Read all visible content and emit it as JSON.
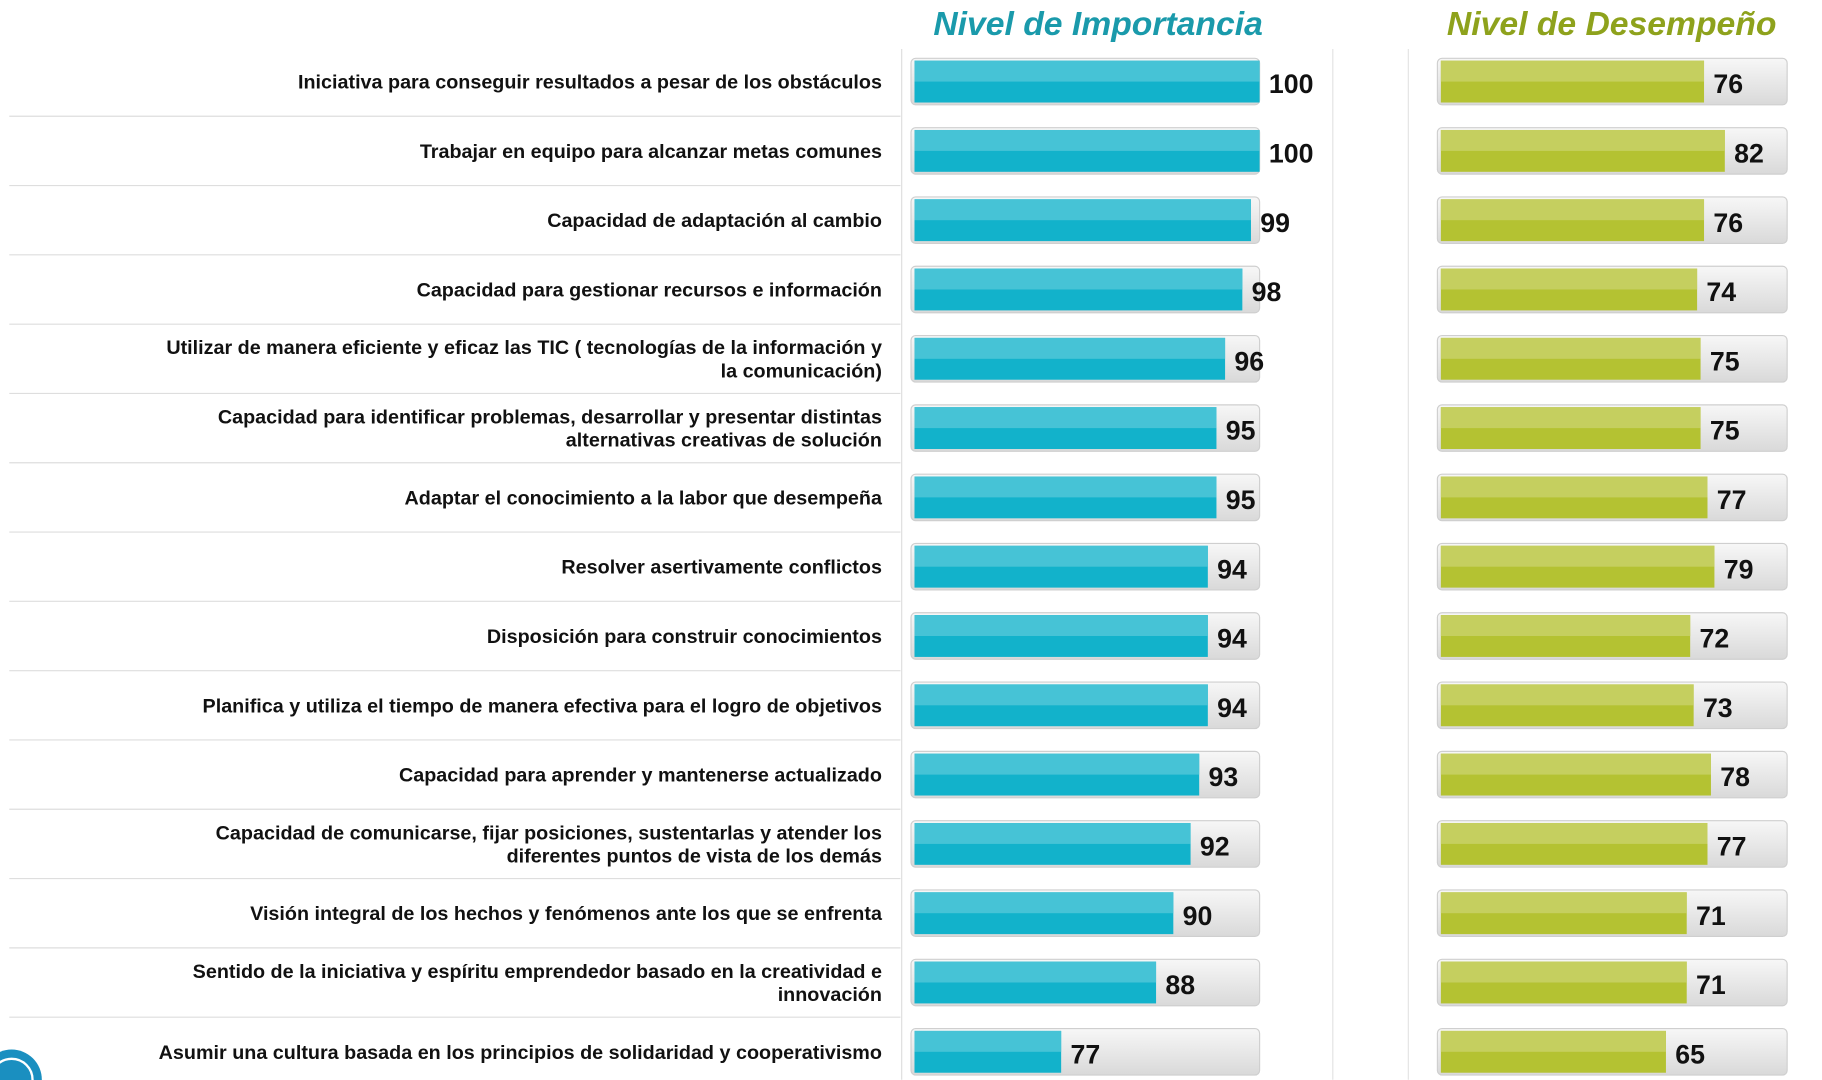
{
  "chart_data": {
    "type": "bar",
    "orientation": "horizontal",
    "categories": [
      "Iniciativa para conseguir resultados a pesar de los obstáculos",
      "Trabajar en equipo para alcanzar metas comunes",
      "Capacidad de adaptación al cambio",
      "Capacidad para gestionar recursos e información",
      "Utilizar de manera eficiente y eficaz las TIC ( tecnologías de la información y\nla comunicación)",
      "Capacidad para identificar problemas, desarrollar y presentar distintas\nalternativas creativas de solución",
      "Adaptar el conocimiento a la labor que desempeña",
      "Resolver asertivamente conflictos",
      "Disposición para construir conocimientos",
      "Planifica y utiliza el tiempo de manera efectiva para el logro de objetivos",
      "Capacidad para aprender y mantenerse actualizado",
      "Capacidad de comunicarse, fijar posiciones, sustentarlas y atender los\ndiferentes puntos de vista de los demás",
      "Visión integral de los hechos y fenómenos ante los que se enfrenta",
      "Sentido de la iniciativa y espíritu emprendedor basado en la creatividad e\ninnovación",
      "Asumir una cultura basada en los principios de solidaridad y cooperativismo"
    ],
    "series": [
      {
        "name": "Nivel de Importancia",
        "color": "#12b2cb",
        "xlim": [
          60,
          100
        ],
        "values": [
          100,
          100,
          99,
          98,
          96,
          95,
          95,
          94,
          94,
          94,
          93,
          92,
          90,
          88,
          77
        ]
      },
      {
        "name": "Nivel de Desempeño",
        "color": "#b4c232",
        "xlim": [
          0,
          100
        ],
        "values": [
          76,
          82,
          76,
          74,
          75,
          75,
          77,
          79,
          72,
          73,
          78,
          77,
          71,
          71,
          65
        ]
      }
    ]
  }
}
